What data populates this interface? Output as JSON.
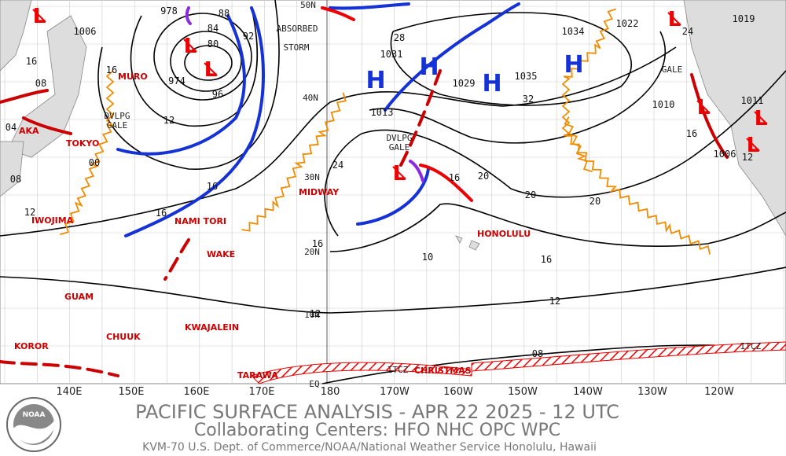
{
  "header": {
    "title": "PACIFIC SURFACE ANALYSIS - APR 22 2025 - 12 UTC",
    "subtitle": "Collaborating Centers:  HFO NHC OPC WPC",
    "credit": "KVM-70 U.S. Dept. of Commerce/NOAA/National Weather Service Honolulu, Hawaii",
    "logo": "NOAA"
  },
  "symbols": {
    "high": "H",
    "low": "L"
  },
  "longitudes": [
    "140E",
    "150E",
    "160E",
    "170E",
    "180",
    "170W",
    "160W",
    "150W",
    "140W",
    "130W",
    "120W"
  ],
  "latitudes": [
    "50N",
    "40N",
    "30N",
    "20N",
    "10N",
    "EQ"
  ],
  "places": [
    "AKA",
    "MURO",
    "TOKYO",
    "IWOJIMA",
    "NAMI TORI",
    "MIDWAY",
    "WAKE",
    "GUAM",
    "KWAJALEIN",
    "CHUUK",
    "KOROR",
    "TARAWA",
    "CHRISTMAS",
    "HONOLULU"
  ],
  "pressures": [
    "978",
    "974",
    "1006",
    "1031",
    "1029",
    "1034",
    "1035",
    "1013",
    "1022",
    "1010",
    "1019",
    "1011",
    "1006"
  ],
  "isobars": [
    "88",
    "84",
    "80",
    "92",
    "96",
    "28",
    "32",
    "24",
    "20",
    "20",
    "20",
    "16",
    "16",
    "16",
    "16",
    "16",
    "16",
    "16",
    "16",
    "12",
    "12",
    "12",
    "12",
    "12",
    "10",
    "08",
    "08",
    "08",
    "00",
    "04",
    "24"
  ],
  "annotations": [
    "ABSORBED",
    "STORM",
    "DVLPG",
    "GALE",
    "DVLPG",
    "GALE",
    "GALE",
    "ITCZ",
    "ITCZ"
  ]
}
